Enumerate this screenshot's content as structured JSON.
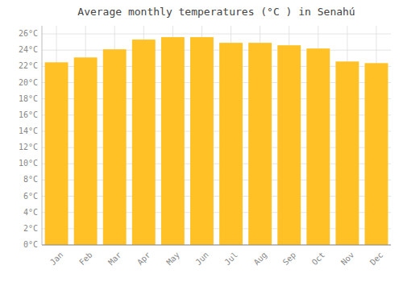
{
  "chart_data": {
    "type": "bar",
    "title": "Average monthly temperatures (°C ) in Senahú",
    "categories": [
      "Jan",
      "Feb",
      "Mar",
      "Apr",
      "May",
      "Jun",
      "Jul",
      "Aug",
      "Sep",
      "Oct",
      "Nov",
      "Dec"
    ],
    "values": [
      22.5,
      23.1,
      24.1,
      25.3,
      25.6,
      25.6,
      24.9,
      24.9,
      24.6,
      24.2,
      22.6,
      22.4
    ],
    "color": "#FFC125",
    "ylim": [
      0,
      27
    ],
    "yticks": [
      {
        "value": 0,
        "label": "0°C"
      },
      {
        "value": 2,
        "label": "2°C"
      },
      {
        "value": 4,
        "label": "4°C"
      },
      {
        "value": 6,
        "label": "6°C"
      },
      {
        "value": 8,
        "label": "8°C"
      },
      {
        "value": 10,
        "label": "10°C"
      },
      {
        "value": 12,
        "label": "12°C"
      },
      {
        "value": 14,
        "label": "14°C"
      },
      {
        "value": 16,
        "label": "16°C"
      },
      {
        "value": 18,
        "label": "18°C"
      },
      {
        "value": 20,
        "label": "20°C"
      },
      {
        "value": 22,
        "label": "22°C"
      },
      {
        "value": 24,
        "label": "24°C"
      },
      {
        "value": 26,
        "label": "26°C"
      }
    ],
    "grid": true
  }
}
